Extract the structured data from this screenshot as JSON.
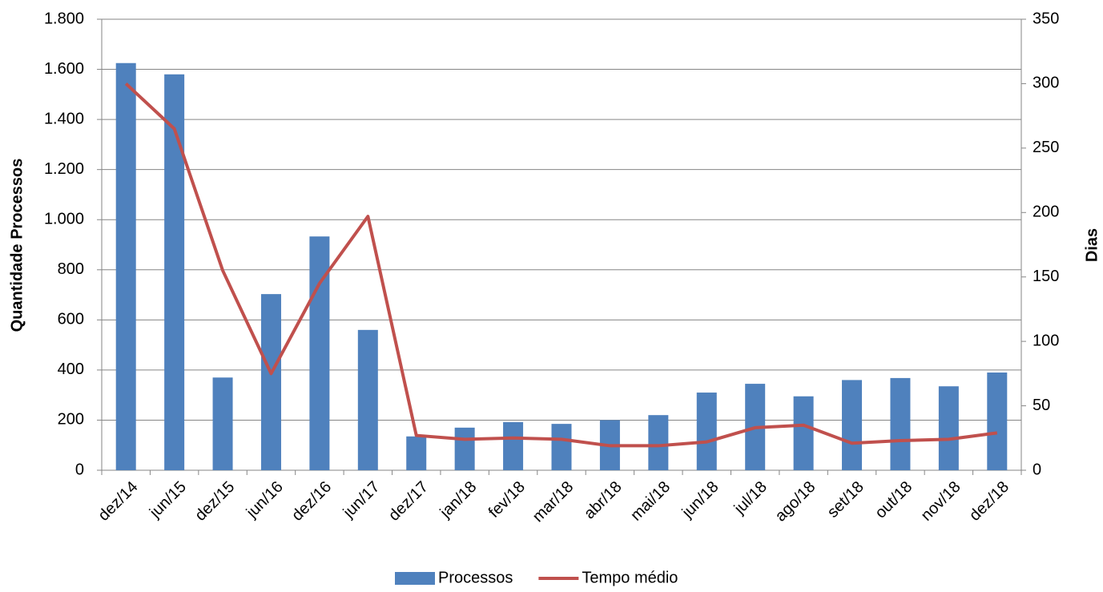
{
  "chart_data": {
    "type": "bar",
    "categories": [
      "dez/14",
      "jun/15",
      "dez/15",
      "jun/16",
      "dez/16",
      "jun/17",
      "dez/17",
      "jan/18",
      "fev/18",
      "mar/18",
      "abr/18",
      "mai/18",
      "jun/18",
      "jul/18",
      "ago/18",
      "set/18",
      "out/18",
      "nov/18",
      "dez/18"
    ],
    "series": [
      {
        "name": "Processos",
        "type": "bar",
        "color": "#4f81bd",
        "values": [
          1625,
          1580,
          370,
          703,
          933,
          560,
          135,
          170,
          192,
          185,
          200,
          220,
          310,
          345,
          295,
          360,
          368,
          335,
          390
        ]
      },
      {
        "name": "Tempo médio",
        "type": "line",
        "axis": "y2",
        "color": "#c0504d",
        "values": [
          300,
          265,
          155,
          75,
          145,
          197,
          27,
          24,
          25,
          24,
          19,
          19,
          22,
          33,
          35,
          21,
          23,
          24,
          29
        ]
      }
    ],
    "ylabel": "Quantidade Processos",
    "y2label": "Dias",
    "ylim": [
      0,
      1800
    ],
    "yticks": [
      0,
      200,
      400,
      600,
      800,
      {
        "value": 1000,
        "label": "1.000"
      },
      {
        "value": 1200,
        "label": "1.200"
      },
      {
        "value": 1400,
        "label": "1.400"
      },
      {
        "value": 1600,
        "label": "1.600"
      },
      {
        "value": 1800,
        "label": "1.800"
      }
    ],
    "y2lim": [
      0,
      350
    ],
    "y2ticks": [
      0,
      50,
      100,
      150,
      200,
      250,
      300,
      350
    ],
    "grid": true,
    "legend": "bottom"
  }
}
